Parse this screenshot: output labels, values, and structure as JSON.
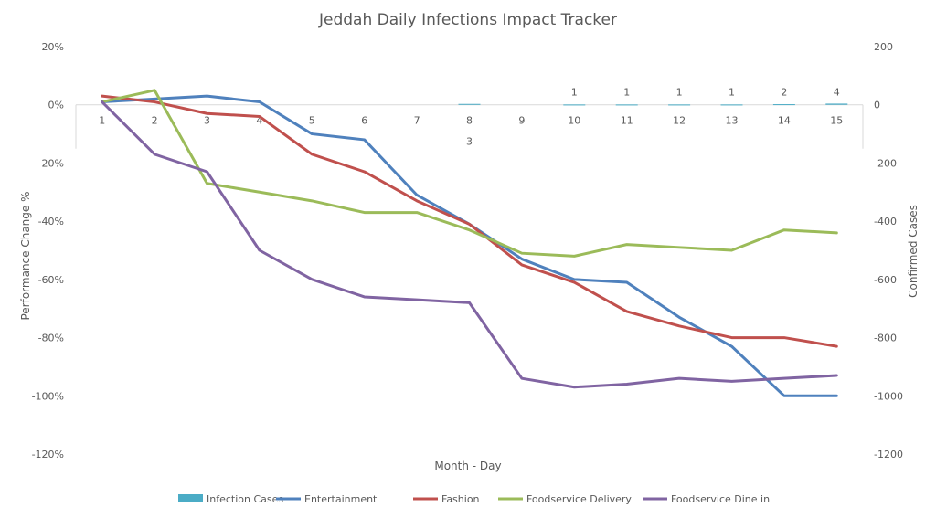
{
  "chart_data": {
    "type": "line",
    "title": "Jeddah Daily Infections Impact Tracker",
    "xlabel": "Month - Day",
    "ylabel": "Performance Change %",
    "y2label": "Confirmed Cases",
    "categories": [
      "1",
      "2",
      "3",
      "4",
      "5",
      "6",
      "7",
      "8",
      "9",
      "10",
      "11",
      "12",
      "13",
      "14",
      "15"
    ],
    "ylim": [
      -120,
      20
    ],
    "yticks": [
      "20%",
      "0%",
      "-20%",
      "-40%",
      "-60%",
      "-80%",
      "-100%",
      "-120%"
    ],
    "y2lim": [
      -1200,
      200
    ],
    "y2ticks": [
      "200",
      "0",
      "-200",
      "-400",
      "-600",
      "-800",
      "-1000",
      "-1200"
    ],
    "grid": false,
    "legend": "bottom",
    "bar_series": {
      "name": "Infection Cases",
      "color": "#4bacc6",
      "axis": "secondary",
      "values": [
        null,
        null,
        null,
        null,
        null,
        null,
        null,
        3,
        null,
        1,
        1,
        1,
        1,
        2,
        4
      ],
      "labels": [
        "",
        "",
        "",
        "",
        "",
        "",
        "",
        "3",
        "",
        "1",
        "1",
        "1",
        "1",
        "2",
        "4"
      ]
    },
    "series": [
      {
        "name": "Entertainment",
        "color": "#4f81bd",
        "values": [
          1,
          2,
          3,
          1,
          -10,
          -12,
          -31,
          -41,
          -53,
          -60,
          -61,
          -73,
          -83,
          -100,
          -100
        ]
      },
      {
        "name": "Fashion",
        "color": "#c0504d",
        "values": [
          3,
          1,
          -3,
          -4,
          -17,
          -23,
          -33,
          -41,
          -55,
          -61,
          -71,
          -76,
          -80,
          -80,
          -83
        ]
      },
      {
        "name": "Foodservice Delivery",
        "color": "#9bbb59",
        "values": [
          1,
          5,
          -27,
          -30,
          -33,
          -37,
          -37,
          -43,
          -51,
          -52,
          -48,
          -49,
          -50,
          -43,
          -44
        ]
      },
      {
        "name": "Foodservice Dine in",
        "color": "#8064a2",
        "values": [
          1,
          -17,
          -23,
          -50,
          -60,
          -66,
          -67,
          -68,
          -94,
          -97,
          -96,
          -94,
          -95,
          -94,
          -93
        ]
      }
    ]
  }
}
